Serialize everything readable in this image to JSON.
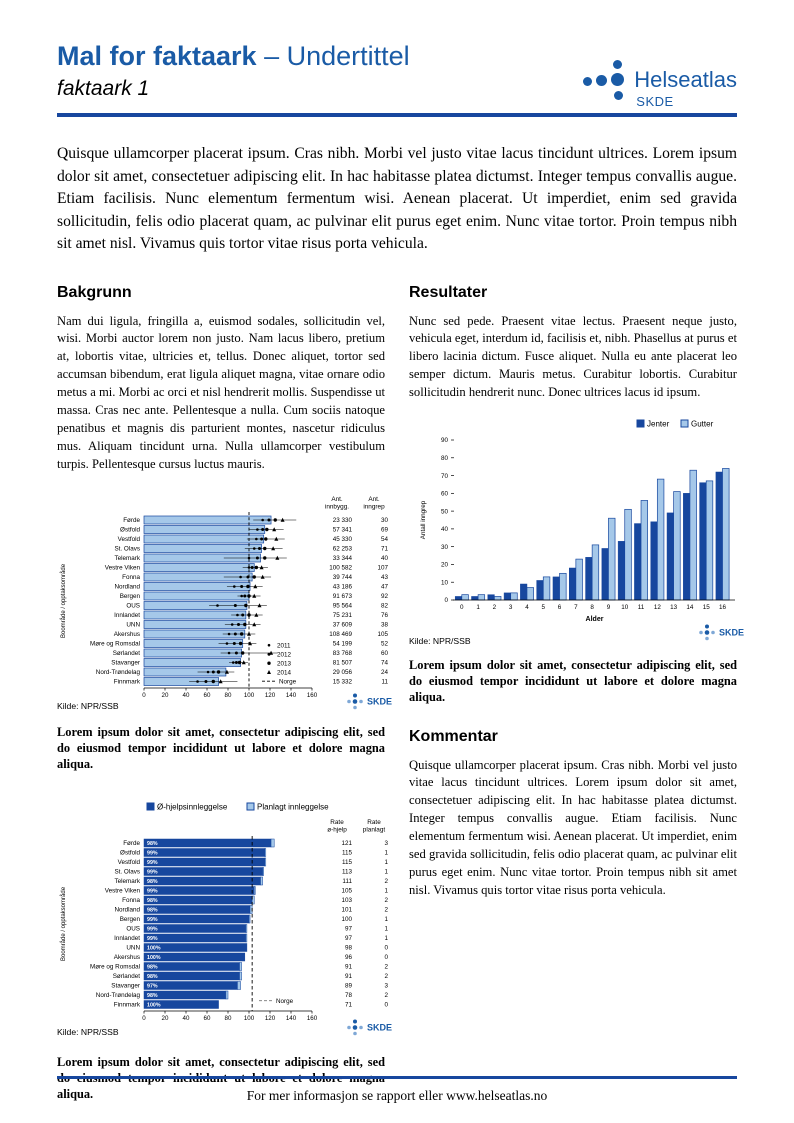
{
  "header": {
    "title_bold": "Mal for faktaark",
    "title_rest": " – Undertittel",
    "subtitle": "faktaark 1",
    "logo_name": "Helseatlas",
    "logo_sub": "SKDE"
  },
  "intro": "Quisque ullamcorper placerat ipsum. Cras nibh. Morbi vel justo vitae lacus tincidunt ultrices. Lorem ipsum dolor sit amet, consectetuer adipiscing elit. In hac habitasse platea dictumst. Integer tempus convallis augue. Etiam facilisis. Nunc elementum fermentum wisi. Aenean placerat. Ut imperdiet, enim sed gravida sollicitudin, felis odio placerat quam, ac pulvinar elit purus eget enim. Nunc vitae tortor. Proin tempus nibh sit amet nisl. Vivamus quis tortor vitae risus porta vehicula.",
  "sections": {
    "bakgrunn": {
      "heading": "Bakgrunn",
      "body": "Nam dui ligula, fringilla a, euismod sodales, sollicitudin vel, wisi. Morbi auctor lorem non justo. Nam lacus libero, pretium at, lobortis vitae, ultricies et, tellus. Donec aliquet, tortor sed accumsan bibendum, erat ligula aliquet magna, vitae ornare odio metus a mi. Morbi ac orci et nisl hendrerit mollis. Suspendisse ut massa. Cras nec ante. Pellentesque a nulla. Cum sociis natoque penatibus et magnis dis parturient montes, nascetur ridiculus mus. Aliquam tincidunt urna. Nulla ullamcorper vestibulum turpis. Pellentesque cursus luctus mauris."
    },
    "resultater": {
      "heading": "Resultater",
      "body": "Nunc sed pede. Praesent vitae lectus. Praesent neque justo, vehicula eget, interdum id, facilisis et, nibh. Phasellus at purus et libero lacinia dictum. Fusce aliquet. Nulla eu ante placerat leo semper dictum. Mauris metus. Curabitur lobortis. Curabitur sollicitudin hendrerit nunc. Donec ultrices lacus id ipsum."
    },
    "kommentar": {
      "heading": "Kommentar",
      "body": "Quisque ullamcorper placerat ipsum. Cras nibh. Morbi vel justo vitae lacus tincidunt ultrices. Lorem ipsum dolor sit amet, consectetuer adipiscing elit. In hac habitasse platea dictumst. Integer tempus convallis augue. Etiam facilisis. Nunc elementum fermentum wisi. Aenean placerat. Ut imperdiet, enim sed gravida sollicitudin, felis odio placerat quam, ac pulvinar elit purus eget enim. Nunc vitae tortor. Proin tempus nibh sit amet nisl. Vivamus quis tortor vitae risus porta vehicula."
    }
  },
  "captions": {
    "standard": "Lorem ipsum dolor sit amet, consectetur adipiscing elit, sed do eiusmod tempor incididunt ut labore et dolore magna aliqua."
  },
  "colors": {
    "brand_blue": "#1a5ba6",
    "dark_bar": "#17479e",
    "light_bar": "#a5c8e9"
  },
  "footer": {
    "text": "For mer informasjon se rapport eller www.helseatlas.no"
  },
  "chart_data": [
    {
      "id": "chart1",
      "type": "bar",
      "orientation": "horizontal",
      "ylabel": "Boområde / opptaksområde",
      "xlim": [
        0,
        160
      ],
      "xticks": [
        0,
        20,
        40,
        60,
        80,
        100,
        120,
        140,
        160
      ],
      "norge_line": 100,
      "col_headers": [
        [
          "Ant.",
          "innbygg."
        ],
        [
          "Ant.",
          "inngrep"
        ]
      ],
      "legend_years": [
        "2011",
        "2012",
        "2013",
        "2014",
        "Norge"
      ],
      "source": "Kilde: NPR/SSB",
      "logo": "SKDE",
      "rows": [
        {
          "name": "Førde",
          "value": 121,
          "innbygg": "23 330",
          "inngrep": "30",
          "markers": [
            113,
            119,
            125,
            132
          ],
          "whisker": [
            104,
            145
          ]
        },
        {
          "name": "Østfold",
          "value": 115,
          "innbygg": "57 341",
          "inngrep": "69",
          "markers": [
            108,
            113,
            117,
            124
          ],
          "whisker": [
            100,
            133
          ]
        },
        {
          "name": "Vestfold",
          "value": 114,
          "innbygg": "45 330",
          "inngrep": "54",
          "markers": [
            107,
            112,
            116,
            126
          ],
          "whisker": [
            98,
            134
          ]
        },
        {
          "name": "St. Olavs",
          "value": 112,
          "innbygg": "62 253",
          "inngrep": "71",
          "markers": [
            105,
            110,
            115,
            123
          ],
          "whisker": [
            96,
            132
          ]
        },
        {
          "name": "Telemark",
          "value": 111,
          "innbygg": "33 344",
          "inngrep": "40",
          "markers": [
            100,
            108,
            115,
            127
          ],
          "whisker": [
            76,
            136
          ]
        },
        {
          "name": "Vestre Viken",
          "value": 105,
          "innbygg": "100 582",
          "inngrep": "107",
          "markers": [
            100,
            103,
            107,
            112
          ],
          "whisker": [
            94,
            118
          ]
        },
        {
          "name": "Fonna",
          "value": 103,
          "innbygg": "39 744",
          "inngrep": "43",
          "markers": [
            92,
            99,
            105,
            113
          ],
          "whisker": [
            76,
            121
          ]
        },
        {
          "name": "Nordland",
          "value": 101,
          "innbygg": "43 186",
          "inngrep": "47",
          "markers": [
            86,
            93,
            99,
            106
          ],
          "whisker": [
            79,
            113
          ]
        },
        {
          "name": "Bergen",
          "value": 100,
          "innbygg": "91 673",
          "inngrep": "92",
          "markers": [
            93,
            96,
            100,
            105
          ],
          "whisker": [
            89,
            111
          ]
        },
        {
          "name": "OUS",
          "value": 98,
          "innbygg": "95 564",
          "inngrep": "82",
          "markers": [
            70,
            87,
            97,
            110
          ],
          "whisker": [
            62,
            117
          ]
        },
        {
          "name": "Innlandet",
          "value": 97,
          "innbygg": "75 231",
          "inngrep": "76",
          "markers": [
            89,
            94,
            100,
            107
          ],
          "whisker": [
            83,
            113
          ]
        },
        {
          "name": "UNN",
          "value": 97,
          "innbygg": "37 609",
          "inngrep": "38",
          "markers": [
            84,
            90,
            96,
            105
          ],
          "whisker": [
            77,
            111
          ]
        },
        {
          "name": "Akershus",
          "value": 96,
          "innbygg": "108 469",
          "inngrep": "105",
          "markers": [
            81,
            87,
            93,
            100
          ],
          "whisker": [
            75,
            106
          ]
        },
        {
          "name": "Møre og Romsdal",
          "value": 94,
          "innbygg": "54 199",
          "inngrep": "52",
          "markers": [
            79,
            86,
            92,
            101
          ],
          "whisker": [
            71,
            107
          ]
        },
        {
          "name": "Sørlandet",
          "value": 93,
          "innbygg": "83 768",
          "inngrep": "60",
          "markers": [
            81,
            88,
            94,
            121
          ],
          "whisker": [
            73,
            127
          ]
        },
        {
          "name": "Stavanger",
          "value": 92,
          "innbygg": "81 507",
          "inngrep": "74",
          "markers": [
            85,
            88,
            91,
            95
          ],
          "whisker": [
            81,
            99
          ]
        },
        {
          "name": "Nord-Trøndelag",
          "value": 78,
          "innbygg": "29 056",
          "inngrep": "24",
          "markers": [
            61,
            66,
            71,
            79
          ],
          "whisker": [
            51,
            86
          ]
        },
        {
          "name": "Finnmark",
          "value": 71,
          "innbygg": "15 332",
          "inngrep": "11",
          "markers": [
            51,
            59,
            66,
            73
          ],
          "whisker": [
            43,
            89
          ]
        }
      ]
    },
    {
      "id": "chart2",
      "type": "bar",
      "orientation": "horizontal-stacked",
      "ylabel": "Boområde / opptaksområde",
      "xlim": [
        0,
        160
      ],
      "xticks": [
        0,
        20,
        40,
        60,
        80,
        100,
        120,
        140,
        160
      ],
      "norge_line": 103,
      "legend": [
        "Ø-hjelpsinnleggelse",
        "Planlagt innleggelse"
      ],
      "norge_label": "Norge",
      "col_headers": [
        [
          "Rate",
          "ø-hjelp"
        ],
        [
          "Rate",
          "planlagt"
        ]
      ],
      "source": "Kilde: NPR/SSB",
      "logo": "SKDE",
      "rows": [
        {
          "name": "Førde",
          "ohjelp": 121,
          "planlagt": 3,
          "pct": "98%"
        },
        {
          "name": "Østfold",
          "ohjelp": 115,
          "planlagt": 1,
          "pct": "99%"
        },
        {
          "name": "Vestfold",
          "ohjelp": 115,
          "planlagt": 1,
          "pct": "99%"
        },
        {
          "name": "St. Olavs",
          "ohjelp": 113,
          "planlagt": 1,
          "pct": "99%"
        },
        {
          "name": "Telemark",
          "ohjelp": 111,
          "planlagt": 2,
          "pct": "98%"
        },
        {
          "name": "Vestre Viken",
          "ohjelp": 105,
          "planlagt": 1,
          "pct": "99%"
        },
        {
          "name": "Fonna",
          "ohjelp": 103,
          "planlagt": 2,
          "pct": "98%"
        },
        {
          "name": "Nordland",
          "ohjelp": 101,
          "planlagt": 2,
          "pct": "98%"
        },
        {
          "name": "Bergen",
          "ohjelp": 100,
          "planlagt": 1,
          "pct": "99%"
        },
        {
          "name": "OUS",
          "ohjelp": 97,
          "planlagt": 1,
          "pct": "99%"
        },
        {
          "name": "Innlandet",
          "ohjelp": 97,
          "planlagt": 1,
          "pct": "99%"
        },
        {
          "name": "UNN",
          "ohjelp": 98,
          "planlagt": 0,
          "pct": "100%"
        },
        {
          "name": "Akershus",
          "ohjelp": 96,
          "planlagt": 0,
          "pct": "100%"
        },
        {
          "name": "Møre og Romsdal",
          "ohjelp": 91,
          "planlagt": 2,
          "pct": "98%"
        },
        {
          "name": "Sørlandet",
          "ohjelp": 91,
          "planlagt": 2,
          "pct": "98%"
        },
        {
          "name": "Stavanger",
          "ohjelp": 89,
          "planlagt": 3,
          "pct": "97%"
        },
        {
          "name": "Nord-Trøndelag",
          "ohjelp": 78,
          "planlagt": 2,
          "pct": "98%"
        },
        {
          "name": "Finnmark",
          "ohjelp": 71,
          "planlagt": 0,
          "pct": "100%"
        }
      ]
    },
    {
      "id": "chart3",
      "type": "bar",
      "orientation": "vertical-grouped",
      "xlabel": "Alder",
      "ylabel": "Antall inngrep",
      "ylim": [
        0,
        90
      ],
      "yticks": [
        0,
        10,
        20,
        30,
        40,
        50,
        60,
        70,
        80,
        90
      ],
      "categories": [
        "0",
        "1",
        "2",
        "3",
        "4",
        "5",
        "6",
        "7",
        "8",
        "9",
        "10",
        "11",
        "12",
        "13",
        "14",
        "15",
        "16"
      ],
      "series": [
        {
          "name": "Jenter",
          "values": [
            2,
            2,
            3,
            4,
            9,
            11,
            13,
            18,
            24,
            29,
            33,
            43,
            44,
            49,
            60,
            66,
            72
          ]
        },
        {
          "name": "Gutter",
          "values": [
            3,
            3,
            2,
            4,
            7,
            13,
            15,
            23,
            31,
            46,
            51,
            56,
            68,
            61,
            73,
            67,
            74
          ]
        }
      ],
      "source": "Kilde: NPR/SSB",
      "logo": "SKDE"
    }
  ]
}
